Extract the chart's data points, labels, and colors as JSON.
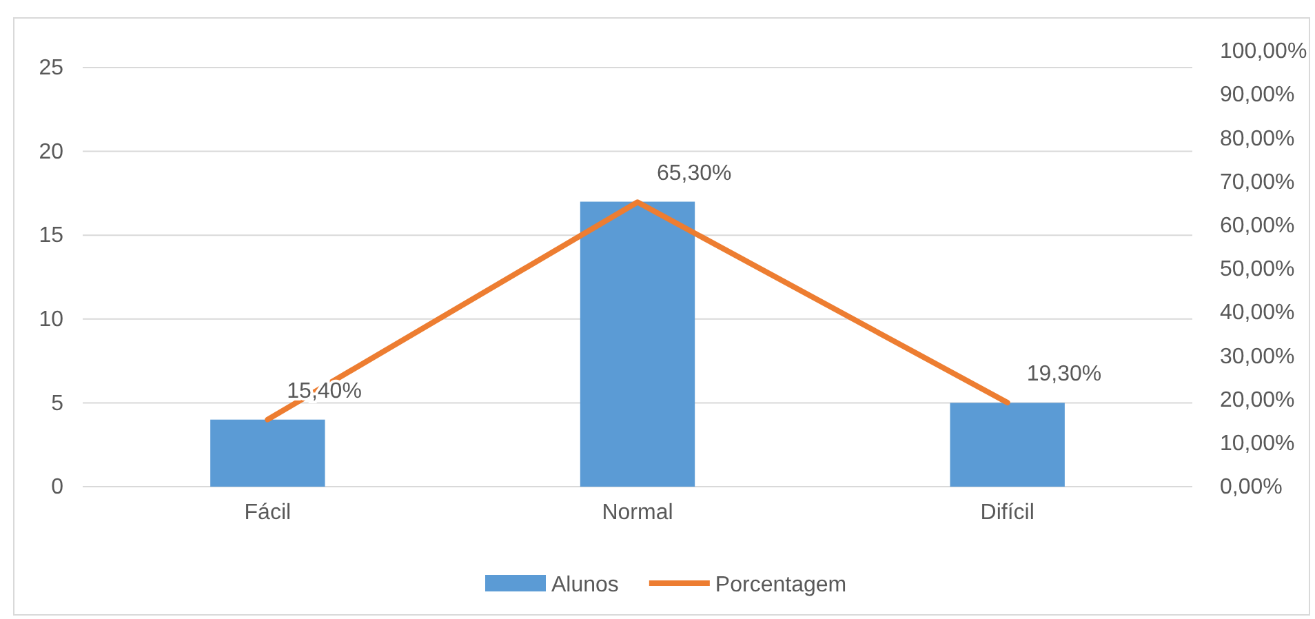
{
  "chart_data": {
    "type": "bar",
    "categories": [
      "Fácil",
      "Normal",
      "Difícil"
    ],
    "series": [
      {
        "name": "Alunos",
        "color": "#5b9bd5",
        "values": [
          4,
          17,
          5
        ]
      },
      {
        "name": "Porcentagem",
        "type": "line",
        "axis": "y2",
        "color": "#ed7d31",
        "values": [
          15.4,
          65.3,
          19.3
        ],
        "value_labels": [
          "15,40%",
          "65,30%",
          "19,30%"
        ]
      }
    ],
    "ylim": [
      0,
      25
    ],
    "yticks": [
      0,
      5,
      10,
      15,
      20,
      25
    ],
    "y2lim": [
      0,
      100
    ],
    "y2ticks": [
      {
        "value": 0,
        "label": "0,00%"
      },
      {
        "value": 10,
        "label": "10,00%"
      },
      {
        "value": 20,
        "label": "20,00%"
      },
      {
        "value": 30,
        "label": "30,00%"
      },
      {
        "value": 40,
        "label": "40,00%"
      },
      {
        "value": 50,
        "label": "50,00%"
      },
      {
        "value": 60,
        "label": "60,00%"
      },
      {
        "value": 70,
        "label": "70,00%"
      },
      {
        "value": 80,
        "label": "80,00%"
      },
      {
        "value": 90,
        "label": "90,00%"
      },
      {
        "value": 100,
        "label": "100,00%"
      }
    ],
    "grid": "y",
    "legend": "bottom",
    "marker": "none",
    "line_style": "solid"
  }
}
